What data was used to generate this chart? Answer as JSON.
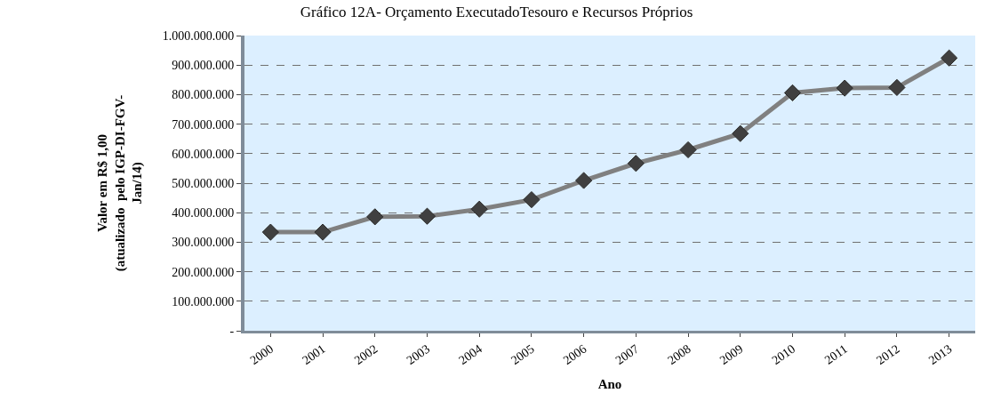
{
  "chart_data": {
    "type": "line",
    "title": "Gráfico 12A- Orçamento ExecutadoTesouro e Recursos Próprios",
    "xlabel": "Ano",
    "ylabel": "Valor em R$ 1,00\n(atualizado  pelo IGP-DI-FGV-\nJan/14)",
    "categories": [
      "2000",
      "2001",
      "2002",
      "2003",
      "2004",
      "2005",
      "2006",
      "2007",
      "2008",
      "2009",
      "2010",
      "2011",
      "2012",
      "2013"
    ],
    "series": [
      {
        "color": "#808080",
        "values": [
          334000000,
          334000000,
          386000000,
          388000000,
          412000000,
          444000000,
          509000000,
          567000000,
          613000000,
          668000000,
          806000000,
          822000000,
          824000000,
          924000000
        ]
      }
    ],
    "ylim": [
      0,
      1000000000
    ],
    "yticks": [
      {
        "value": 0,
        "label": "-"
      },
      {
        "value": 100000000,
        "label": "100.000.000"
      },
      {
        "value": 200000000,
        "label": "200.000.000"
      },
      {
        "value": 300000000,
        "label": "300.000.000"
      },
      {
        "value": 400000000,
        "label": "400.000.000"
      },
      {
        "value": 500000000,
        "label": "500.000.000"
      },
      {
        "value": 600000000,
        "label": "600.000.000"
      },
      {
        "value": 700000000,
        "label": "700.000.000"
      },
      {
        "value": 800000000,
        "label": "800.000.000"
      },
      {
        "value": 900000000,
        "label": "900.000.000"
      },
      {
        "value": 1000000000,
        "label": "1.000.000.000"
      }
    ],
    "grid": "y",
    "marker": "diamond",
    "line_style": "solid"
  }
}
